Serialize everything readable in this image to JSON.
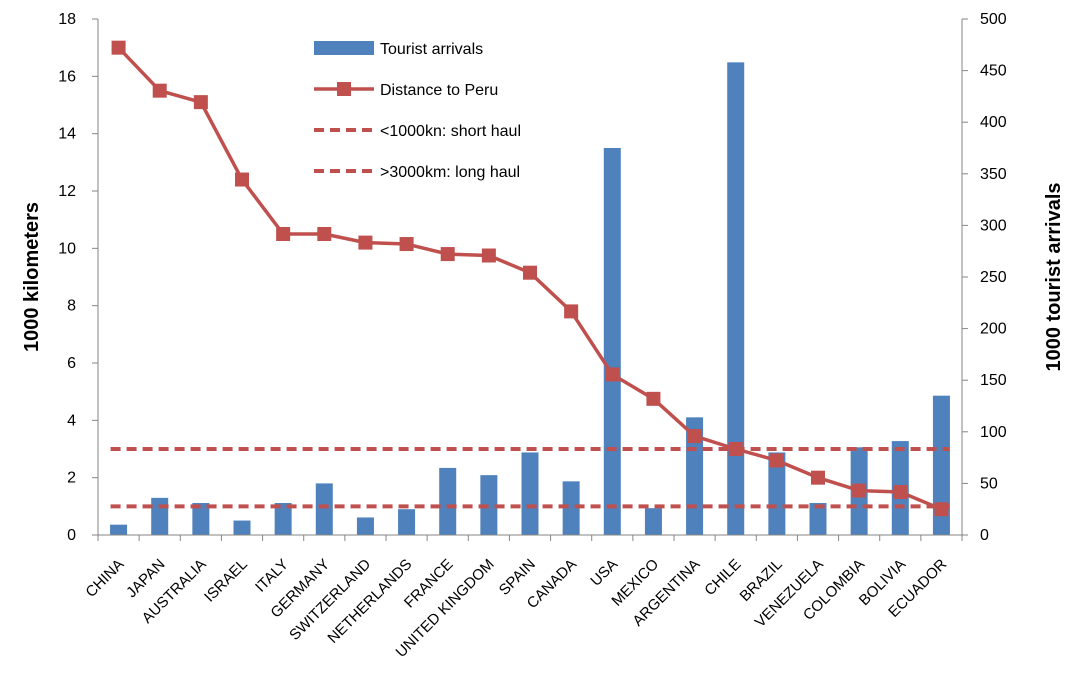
{
  "chart_data": {
    "type": "bar",
    "categories": [
      "CHINA",
      "JAPAN",
      "AUSTRALIA",
      "ISRAEL",
      "ITALY",
      "GERMANY",
      "SWITZERLAND",
      "NETHERLANDS",
      "FRANCE",
      "UNITED KINGDOM",
      "SPAIN",
      "CANADA",
      "USA",
      "MEXICO",
      "ARGENTINA",
      "CHILE",
      "BRAZIL",
      "VENEZUELA",
      "COLOMBIA",
      "BOLIVIA",
      "ECUADOR"
    ],
    "series": [
      {
        "name": "Tourist arrivals",
        "type": "bar",
        "axis": "right",
        "color": "#4F81BD",
        "values": [
          10,
          36,
          31,
          14,
          31,
          50,
          17,
          25,
          65,
          58,
          80,
          52,
          375,
          26,
          114,
          458,
          80,
          31,
          85,
          91,
          135
        ]
      },
      {
        "name": "Distance to Peru",
        "type": "line",
        "marker": "square",
        "axis": "left",
        "color": "#C0504D",
        "values": [
          17.0,
          15.5,
          15.1,
          12.4,
          10.5,
          10.5,
          10.2,
          10.15,
          9.8,
          9.75,
          9.15,
          7.8,
          5.6,
          4.75,
          3.45,
          3.0,
          2.6,
          2.0,
          1.55,
          1.5,
          0.9
        ]
      }
    ],
    "reference_lines": [
      {
        "name": "<1000kn: short haul",
        "axis": "left",
        "value": 1.0,
        "style": "dashed",
        "color": "#C0504D"
      },
      {
        "name": ">3000km: long haul",
        "axis": "left",
        "value": 3.0,
        "style": "dashed",
        "color": "#C0504D"
      }
    ],
    "y_left": {
      "label": "1000 kilometers",
      "lim": [
        0,
        18
      ],
      "ticks": [
        0,
        2,
        4,
        6,
        8,
        10,
        12,
        14,
        16,
        18
      ]
    },
    "y_right": {
      "label": "1000 tourist arrivals",
      "lim": [
        0,
        500
      ],
      "ticks": [
        0,
        50,
        100,
        150,
        200,
        250,
        300,
        350,
        400,
        450,
        500
      ]
    },
    "xlabel": "",
    "legend": "top-center",
    "grid": false
  }
}
